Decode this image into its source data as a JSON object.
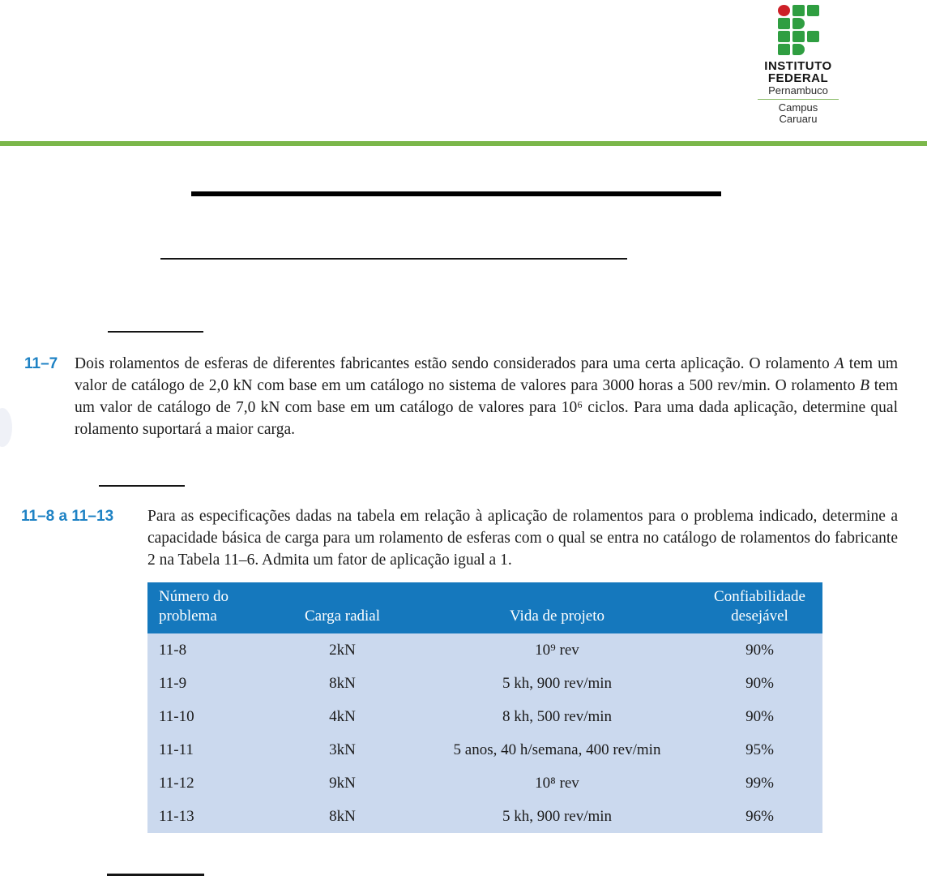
{
  "logo": {
    "institution_line1": "INSTITUTO",
    "institution_line2": "FEDERAL",
    "state": "Pernambuco",
    "campus_line1": "Campus",
    "campus_line2": "Caruaru",
    "colors": {
      "green": "#2F9E41",
      "red": "#CD2027"
    }
  },
  "accents": {
    "label_blue": "#1E82C4",
    "page_bar_green": "#7BB74A",
    "table_header_blue": "#1578BD",
    "table_body_blue": "#CBD9EE"
  },
  "problems": [
    {
      "label": "11–7",
      "segments": [
        {
          "text": "Dois rolamentos de esferas de diferentes fabricantes estão sendo considerados para uma certa aplicação. O rolamento "
        },
        {
          "text": "A",
          "italic": true
        },
        {
          "text": " tem um valor de catálogo de 2,0 kN com base em um catálogo no sistema de valores para 3000 horas a 500 rev/min. O rolamento "
        },
        {
          "text": "B",
          "italic": true
        },
        {
          "text": " tem um valor de catálogo de 7,0 kN com base em um catálogo de valores para 10⁶ ciclos. Para uma dada aplicação, determine qual rolamento suportará a maior carga."
        }
      ]
    },
    {
      "label": "11–8 a 11–13",
      "segments": [
        {
          "text": "Para as especificações dadas na tabela em relação à aplicação de rolamentos para o problema indicado, determine a capacidade básica de carga para um rolamento de esferas com o qual se entra no catálogo de rolamentos do fabricante 2 na Tabela 11–6. Admita um fator de aplicação igual a 1."
        }
      ]
    }
  ],
  "table": {
    "headers": [
      "Número do problema",
      "Carga radial",
      "Vida de projeto",
      "Confiabilidade desejável"
    ],
    "rows": [
      [
        "11-8",
        "2kN",
        "10⁹ rev",
        "90%"
      ],
      [
        "11-9",
        "8kN",
        "5 kh, 900 rev/min",
        "90%"
      ],
      [
        "11-10",
        "4kN",
        "8 kh, 500 rev/min",
        "90%"
      ],
      [
        "11-11",
        "3kN",
        "5 anos, 40 h/semana, 400 rev/min",
        "95%"
      ],
      [
        "11-12",
        "9kN",
        "10⁸ rev",
        "99%"
      ],
      [
        "11-13",
        "8kN",
        "5 kh, 900 rev/min",
        "96%"
      ]
    ]
  }
}
